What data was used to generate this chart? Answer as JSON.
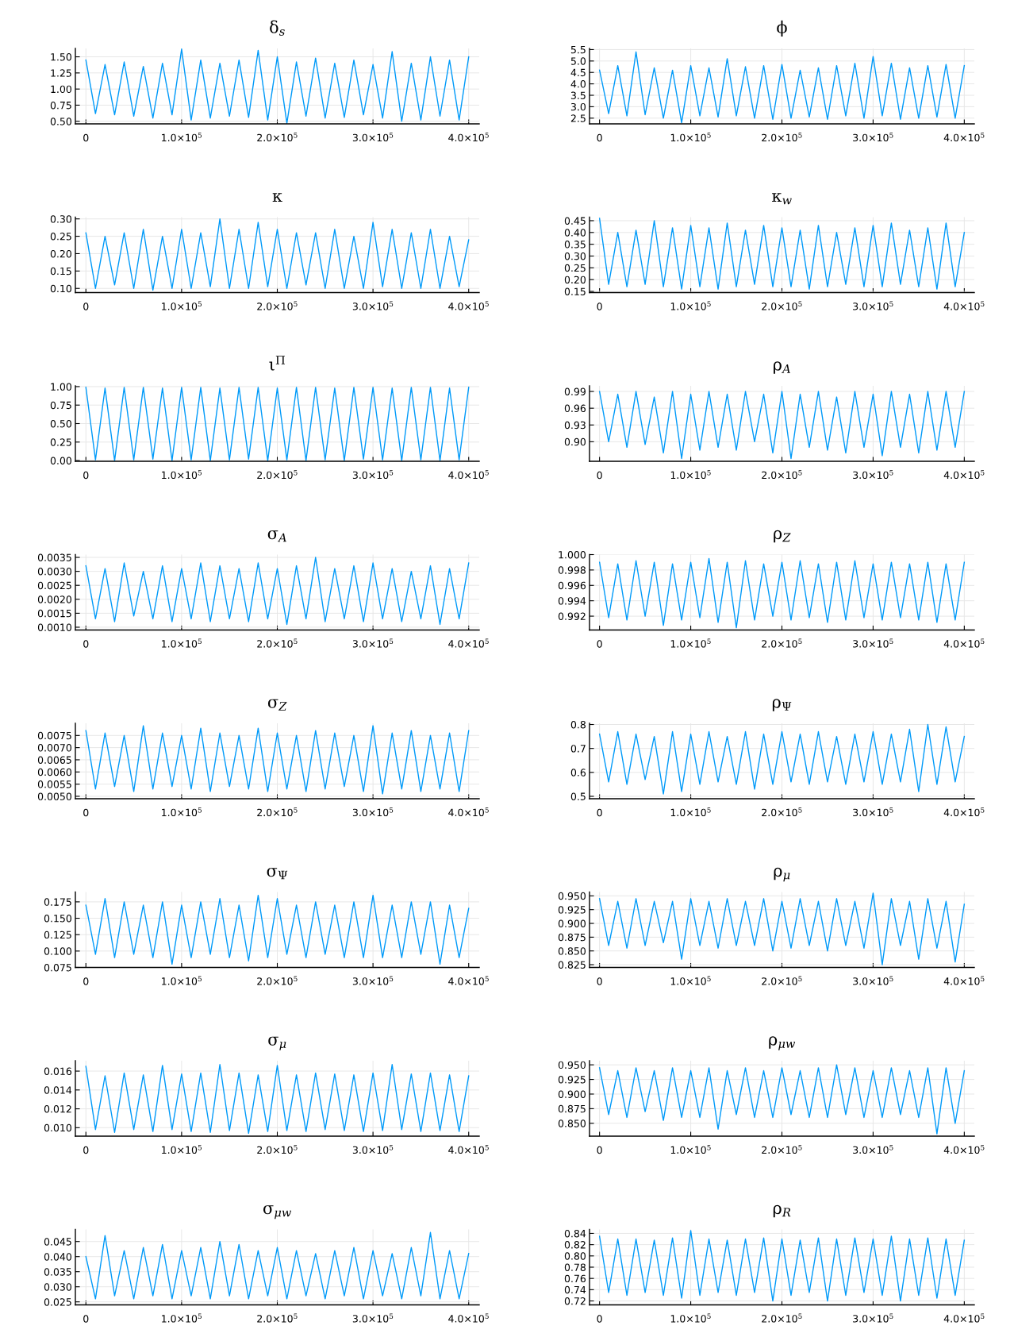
{
  "chart_data": [
    {
      "type": "line",
      "title": "δ$_{s}$",
      "color": "#009af9",
      "grid": true,
      "xlim": [
        -11000,
        411000
      ],
      "xticks": [
        0,
        {
          "value": 100000,
          "label": "1.0×10$^{5}$"
        },
        {
          "value": 200000,
          "label": "2.0×10$^{5}$"
        },
        {
          "value": 300000,
          "label": "3.0×10$^{5}$"
        },
        {
          "value": 400000,
          "label": "4.0×10$^{5}$"
        }
      ],
      "ylim": [
        0.46,
        1.63
      ],
      "yticks": [
        {
          "value": 0.5,
          "label": "0.50"
        },
        0.75,
        {
          "value": 1.0,
          "label": "1.00"
        },
        1.25,
        {
          "value": 1.5,
          "label": "1.50"
        }
      ],
      "x": [
        0,
        10000,
        20000,
        30000,
        40000,
        50000,
        60000,
        70000,
        80000,
        90000,
        100000,
        110000,
        120000,
        130000,
        140000,
        150000,
        160000,
        170000,
        180000,
        190000,
        200000,
        210000,
        220000,
        230000,
        240000,
        250000,
        260000,
        270000,
        280000,
        290000,
        300000,
        310000,
        320000,
        330000,
        340000,
        350000,
        360000,
        370000,
        380000,
        390000,
        400000
      ],
      "values": [
        1.45,
        0.62,
        1.38,
        0.6,
        1.42,
        0.58,
        1.35,
        0.55,
        1.4,
        0.6,
        1.62,
        0.52,
        1.45,
        0.55,
        1.4,
        0.58,
        1.45,
        0.56,
        1.6,
        0.52,
        1.5,
        0.47,
        1.42,
        0.58,
        1.48,
        0.55,
        1.4,
        0.56,
        1.45,
        0.6,
        1.38,
        0.55,
        1.58,
        0.5,
        1.4,
        0.52,
        1.5,
        0.58,
        1.45,
        0.52,
        1.5
      ]
    },
    {
      "type": "line",
      "title": "ϕ",
      "color": "#009af9",
      "grid": true,
      "xlim": [
        -11000,
        411000
      ],
      "xticks": [
        0,
        {
          "value": 100000,
          "label": "1.0×10$^{5}$"
        },
        {
          "value": 200000,
          "label": "2.0×10$^{5}$"
        },
        {
          "value": 300000,
          "label": "3.0×10$^{5}$"
        },
        {
          "value": 400000,
          "label": "4.0×10$^{5}$"
        }
      ],
      "ylim": [
        2.25,
        5.55
      ],
      "yticks": [
        2.5,
        {
          "value": 3.0,
          "label": "3.0"
        },
        3.5,
        {
          "value": 4.0,
          "label": "4.0"
        },
        4.5,
        {
          "value": 5.0,
          "label": "5.0"
        },
        5.5
      ],
      "x": [
        0,
        10000,
        20000,
        30000,
        40000,
        50000,
        60000,
        70000,
        80000,
        90000,
        100000,
        110000,
        120000,
        130000,
        140000,
        150000,
        160000,
        170000,
        180000,
        190000,
        200000,
        210000,
        220000,
        230000,
        240000,
        250000,
        260000,
        270000,
        280000,
        290000,
        300000,
        310000,
        320000,
        330000,
        340000,
        350000,
        360000,
        370000,
        380000,
        390000,
        400000
      ],
      "values": [
        4.6,
        2.7,
        4.8,
        2.6,
        5.4,
        2.65,
        4.7,
        2.5,
        4.6,
        2.3,
        4.8,
        2.6,
        4.7,
        2.55,
        5.1,
        2.6,
        4.75,
        2.5,
        4.8,
        2.45,
        4.85,
        2.5,
        4.6,
        2.55,
        4.7,
        2.45,
        4.8,
        2.6,
        4.9,
        2.5,
        5.2,
        2.6,
        4.9,
        2.45,
        4.7,
        2.5,
        4.8,
        2.55,
        4.85,
        2.5,
        4.8
      ]
    },
    {
      "type": "line",
      "title": "κ",
      "color": "#009af9",
      "grid": true,
      "xlim": [
        -11000,
        411000
      ],
      "xticks": [
        0,
        {
          "value": 100000,
          "label": "1.0×10$^{5}$"
        },
        {
          "value": 200000,
          "label": "2.0×10$^{5}$"
        },
        {
          "value": 300000,
          "label": "3.0×10$^{5}$"
        },
        {
          "value": 400000,
          "label": "4.0×10$^{5}$"
        }
      ],
      "ylim": [
        0.088,
        0.305
      ],
      "yticks": [
        {
          "value": 0.1,
          "label": "0.10"
        },
        0.15,
        {
          "value": 0.2,
          "label": "0.20"
        },
        0.25,
        {
          "value": 0.3,
          "label": "0.30"
        }
      ],
      "x": [
        0,
        10000,
        20000,
        30000,
        40000,
        50000,
        60000,
        70000,
        80000,
        90000,
        100000,
        110000,
        120000,
        130000,
        140000,
        150000,
        160000,
        170000,
        180000,
        190000,
        200000,
        210000,
        220000,
        230000,
        240000,
        250000,
        260000,
        270000,
        280000,
        290000,
        300000,
        310000,
        320000,
        330000,
        340000,
        350000,
        360000,
        370000,
        380000,
        390000,
        400000
      ],
      "values": [
        0.26,
        0.1,
        0.25,
        0.11,
        0.26,
        0.1,
        0.27,
        0.095,
        0.25,
        0.1,
        0.27,
        0.1,
        0.26,
        0.105,
        0.3,
        0.1,
        0.27,
        0.1,
        0.29,
        0.105,
        0.27,
        0.1,
        0.26,
        0.11,
        0.26,
        0.1,
        0.27,
        0.1,
        0.25,
        0.1,
        0.29,
        0.105,
        0.27,
        0.1,
        0.26,
        0.1,
        0.27,
        0.1,
        0.25,
        0.105,
        0.24
      ]
    },
    {
      "type": "line",
      "title": "κ$_{w}$",
      "color": "#009af9",
      "grid": true,
      "xlim": [
        -11000,
        411000
      ],
      "xticks": [
        0,
        {
          "value": 100000,
          "label": "1.0×10$^{5}$"
        },
        {
          "value": 200000,
          "label": "2.0×10$^{5}$"
        },
        {
          "value": 300000,
          "label": "3.0×10$^{5}$"
        },
        {
          "value": 400000,
          "label": "4.0×10$^{5}$"
        }
      ],
      "ylim": [
        0.145,
        0.465
      ],
      "yticks": [
        0.15,
        {
          "value": 0.2,
          "label": "0.20"
        },
        0.25,
        {
          "value": 0.3,
          "label": "0.30"
        },
        0.35,
        {
          "value": 0.4,
          "label": "0.40"
        },
        0.45
      ],
      "x": [
        0,
        10000,
        20000,
        30000,
        40000,
        50000,
        60000,
        70000,
        80000,
        90000,
        100000,
        110000,
        120000,
        130000,
        140000,
        150000,
        160000,
        170000,
        180000,
        190000,
        200000,
        210000,
        220000,
        230000,
        240000,
        250000,
        260000,
        270000,
        280000,
        290000,
        300000,
        310000,
        320000,
        330000,
        340000,
        350000,
        360000,
        370000,
        380000,
        390000,
        400000
      ],
      "values": [
        0.46,
        0.18,
        0.4,
        0.17,
        0.41,
        0.18,
        0.45,
        0.17,
        0.42,
        0.16,
        0.43,
        0.17,
        0.42,
        0.16,
        0.44,
        0.17,
        0.41,
        0.18,
        0.43,
        0.17,
        0.42,
        0.17,
        0.41,
        0.16,
        0.43,
        0.17,
        0.4,
        0.18,
        0.42,
        0.17,
        0.43,
        0.17,
        0.44,
        0.18,
        0.41,
        0.17,
        0.42,
        0.16,
        0.44,
        0.17,
        0.4
      ]
    },
    {
      "type": "line",
      "title": "ι$^{Π}$",
      "color": "#009af9",
      "grid": true,
      "xlim": [
        -11000,
        411000
      ],
      "xticks": [
        0,
        {
          "value": 100000,
          "label": "1.0×10$^{5}$"
        },
        {
          "value": 200000,
          "label": "2.0×10$^{5}$"
        },
        {
          "value": 300000,
          "label": "3.0×10$^{5}$"
        },
        {
          "value": 400000,
          "label": "4.0×10$^{5}$"
        }
      ],
      "ylim": [
        -0.01,
        1.01
      ],
      "yticks": [
        {
          "value": 0,
          "label": "0.00"
        },
        0.25,
        {
          "value": 0.5,
          "label": "0.50"
        },
        0.75,
        {
          "value": 1.0,
          "label": "1.00"
        }
      ],
      "x": [
        0,
        10000,
        20000,
        30000,
        40000,
        50000,
        60000,
        70000,
        80000,
        90000,
        100000,
        110000,
        120000,
        130000,
        140000,
        150000,
        160000,
        170000,
        180000,
        190000,
        200000,
        210000,
        220000,
        230000,
        240000,
        250000,
        260000,
        270000,
        280000,
        290000,
        300000,
        310000,
        320000,
        330000,
        340000,
        350000,
        360000,
        370000,
        380000,
        390000,
        400000
      ],
      "values": [
        0.99,
        0.01,
        0.98,
        0.0,
        0.99,
        0.01,
        0.99,
        0.02,
        0.98,
        0.0,
        0.99,
        0.01,
        0.99,
        0.0,
        0.98,
        0.01,
        0.99,
        0.02,
        0.99,
        0.0,
        0.98,
        0.01,
        0.99,
        0.0,
        0.99,
        0.01,
        0.98,
        0.0,
        0.99,
        0.02,
        0.99,
        0.01,
        0.98,
        0.0,
        0.99,
        0.01,
        0.99,
        0.0,
        0.98,
        0.01,
        0.99
      ]
    },
    {
      "type": "line",
      "title": "ρ$_{A}$",
      "color": "#009af9",
      "grid": true,
      "xlim": [
        -11000,
        411000
      ],
      "xticks": [
        0,
        {
          "value": 100000,
          "label": "1.0×10$^{5}$"
        },
        {
          "value": 200000,
          "label": "2.0×10$^{5}$"
        },
        {
          "value": 300000,
          "label": "3.0×10$^{5}$"
        },
        {
          "value": 400000,
          "label": "4.0×10$^{5}$"
        }
      ],
      "ylim": [
        0.865,
        1.0
      ],
      "yticks": [
        {
          "value": 0.9,
          "label": "0.90"
        },
        0.93,
        0.96,
        0.99
      ],
      "x": [
        0,
        10000,
        20000,
        30000,
        40000,
        50000,
        60000,
        70000,
        80000,
        90000,
        100000,
        110000,
        120000,
        130000,
        140000,
        150000,
        160000,
        170000,
        180000,
        190000,
        200000,
        210000,
        220000,
        230000,
        240000,
        250000,
        260000,
        270000,
        280000,
        290000,
        300000,
        310000,
        320000,
        330000,
        340000,
        350000,
        360000,
        370000,
        380000,
        390000,
        400000
      ],
      "values": [
        0.99,
        0.9,
        0.985,
        0.89,
        0.99,
        0.895,
        0.98,
        0.88,
        0.99,
        0.87,
        0.985,
        0.885,
        0.99,
        0.89,
        0.985,
        0.885,
        0.99,
        0.9,
        0.985,
        0.88,
        0.99,
        0.87,
        0.985,
        0.89,
        0.99,
        0.885,
        0.98,
        0.88,
        0.99,
        0.89,
        0.985,
        0.875,
        0.99,
        0.89,
        0.985,
        0.88,
        0.99,
        0.885,
        0.99,
        0.89,
        0.99
      ]
    },
    {
      "type": "line",
      "title": "σ$_{A}$",
      "color": "#009af9",
      "grid": true,
      "xlim": [
        -11000,
        411000
      ],
      "xticks": [
        0,
        {
          "value": 100000,
          "label": "1.0×10$^{5}$"
        },
        {
          "value": 200000,
          "label": "2.0×10$^{5}$"
        },
        {
          "value": 300000,
          "label": "3.0×10$^{5}$"
        },
        {
          "value": 400000,
          "label": "4.0×10$^{5}$"
        }
      ],
      "ylim": [
        0.0009,
        0.0036
      ],
      "yticks": [
        {
          "value": 0.001,
          "label": "0.0010"
        },
        0.0015,
        {
          "value": 0.002,
          "label": "0.0020"
        },
        0.0025,
        {
          "value": 0.003,
          "label": "0.0030"
        },
        0.0035
      ],
      "x": [
        0,
        10000,
        20000,
        30000,
        40000,
        50000,
        60000,
        70000,
        80000,
        90000,
        100000,
        110000,
        120000,
        130000,
        140000,
        150000,
        160000,
        170000,
        180000,
        190000,
        200000,
        210000,
        220000,
        230000,
        240000,
        250000,
        260000,
        270000,
        280000,
        290000,
        300000,
        310000,
        320000,
        330000,
        340000,
        350000,
        360000,
        370000,
        380000,
        390000,
        400000
      ],
      "values": [
        0.0032,
        0.0013,
        0.0031,
        0.0012,
        0.0033,
        0.0014,
        0.003,
        0.0013,
        0.0032,
        0.0012,
        0.0031,
        0.0013,
        0.0033,
        0.0012,
        0.0032,
        0.0013,
        0.0031,
        0.0012,
        0.0033,
        0.0013,
        0.0031,
        0.0011,
        0.0032,
        0.0013,
        0.0035,
        0.0012,
        0.0031,
        0.0013,
        0.0032,
        0.0012,
        0.0033,
        0.0013,
        0.0031,
        0.0012,
        0.003,
        0.0013,
        0.0032,
        0.0011,
        0.0031,
        0.0013,
        0.0033
      ]
    },
    {
      "type": "line",
      "title": "ρ$_{Z}$",
      "color": "#009af9",
      "grid": true,
      "xlim": [
        -11000,
        411000
      ],
      "xticks": [
        0,
        {
          "value": 100000,
          "label": "1.0×10$^{5}$"
        },
        {
          "value": 200000,
          "label": "2.0×10$^{5}$"
        },
        {
          "value": 300000,
          "label": "3.0×10$^{5}$"
        },
        {
          "value": 400000,
          "label": "4.0×10$^{5}$"
        }
      ],
      "ylim": [
        0.9902,
        1.0
      ],
      "yticks": [
        0.992,
        0.994,
        0.996,
        0.998,
        {
          "value": 1.0,
          "label": "1.000"
        }
      ],
      "x": [
        0,
        10000,
        20000,
        30000,
        40000,
        50000,
        60000,
        70000,
        80000,
        90000,
        100000,
        110000,
        120000,
        130000,
        140000,
        150000,
        160000,
        170000,
        180000,
        190000,
        200000,
        210000,
        220000,
        230000,
        240000,
        250000,
        260000,
        270000,
        280000,
        290000,
        300000,
        310000,
        320000,
        330000,
        340000,
        350000,
        360000,
        370000,
        380000,
        390000,
        400000
      ],
      "values": [
        0.999,
        0.9918,
        0.9988,
        0.9915,
        0.9992,
        0.992,
        0.999,
        0.9908,
        0.9988,
        0.9915,
        0.999,
        0.9918,
        0.9995,
        0.9912,
        0.999,
        0.9905,
        0.9992,
        0.9915,
        0.9988,
        0.992,
        0.999,
        0.9915,
        0.9992,
        0.9918,
        0.9988,
        0.9912,
        0.999,
        0.9915,
        0.9992,
        0.9918,
        0.9988,
        0.9915,
        0.999,
        0.9918,
        0.9988,
        0.9915,
        0.999,
        0.9912,
        0.9988,
        0.9915,
        0.999
      ]
    },
    {
      "type": "line",
      "title": "σ$_{Z}$",
      "color": "#009af9",
      "grid": true,
      "xlim": [
        -11000,
        411000
      ],
      "xticks": [
        0,
        {
          "value": 100000,
          "label": "1.0×10$^{5}$"
        },
        {
          "value": 200000,
          "label": "2.0×10$^{5}$"
        },
        {
          "value": 300000,
          "label": "3.0×10$^{5}$"
        },
        {
          "value": 400000,
          "label": "4.0×10$^{5}$"
        }
      ],
      "ylim": [
        0.0049,
        0.008
      ],
      "yticks": [
        {
          "value": 0.005,
          "label": "0.0050"
        },
        0.0055,
        {
          "value": 0.006,
          "label": "0.0060"
        },
        0.0065,
        {
          "value": 0.007,
          "label": "0.0070"
        },
        0.0075
      ],
      "x": [
        0,
        10000,
        20000,
        30000,
        40000,
        50000,
        60000,
        70000,
        80000,
        90000,
        100000,
        110000,
        120000,
        130000,
        140000,
        150000,
        160000,
        170000,
        180000,
        190000,
        200000,
        210000,
        220000,
        230000,
        240000,
        250000,
        260000,
        270000,
        280000,
        290000,
        300000,
        310000,
        320000,
        330000,
        340000,
        350000,
        360000,
        370000,
        380000,
        390000,
        400000
      ],
      "values": [
        0.0077,
        0.0053,
        0.0076,
        0.0054,
        0.0075,
        0.0052,
        0.0079,
        0.0053,
        0.0076,
        0.0054,
        0.0075,
        0.0053,
        0.0078,
        0.0052,
        0.0076,
        0.0054,
        0.0075,
        0.0053,
        0.0078,
        0.0052,
        0.0076,
        0.0053,
        0.0075,
        0.0052,
        0.0077,
        0.0053,
        0.0076,
        0.0054,
        0.0075,
        0.0052,
        0.0079,
        0.0051,
        0.0076,
        0.0053,
        0.0077,
        0.0052,
        0.0075,
        0.0053,
        0.0076,
        0.0052,
        0.0077
      ]
    },
    {
      "type": "line",
      "title": "ρ$_{Ψ}$",
      "color": "#009af9",
      "grid": true,
      "xlim": [
        -11000,
        411000
      ],
      "xticks": [
        0,
        {
          "value": 100000,
          "label": "1.0×10$^{5}$"
        },
        {
          "value": 200000,
          "label": "2.0×10$^{5}$"
        },
        {
          "value": 300000,
          "label": "3.0×10$^{5}$"
        },
        {
          "value": 400000,
          "label": "4.0×10$^{5}$"
        }
      ],
      "ylim": [
        0.49,
        0.805
      ],
      "yticks": [
        0.5,
        0.6,
        0.7,
        0.8
      ],
      "x": [
        0,
        10000,
        20000,
        30000,
        40000,
        50000,
        60000,
        70000,
        80000,
        90000,
        100000,
        110000,
        120000,
        130000,
        140000,
        150000,
        160000,
        170000,
        180000,
        190000,
        200000,
        210000,
        220000,
        230000,
        240000,
        250000,
        260000,
        270000,
        280000,
        290000,
        300000,
        310000,
        320000,
        330000,
        340000,
        350000,
        360000,
        370000,
        380000,
        390000,
        400000
      ],
      "values": [
        0.76,
        0.56,
        0.77,
        0.55,
        0.76,
        0.57,
        0.75,
        0.51,
        0.77,
        0.52,
        0.76,
        0.55,
        0.77,
        0.56,
        0.75,
        0.55,
        0.77,
        0.53,
        0.76,
        0.55,
        0.77,
        0.56,
        0.76,
        0.55,
        0.77,
        0.56,
        0.75,
        0.55,
        0.76,
        0.56,
        0.77,
        0.55,
        0.76,
        0.56,
        0.78,
        0.52,
        0.8,
        0.55,
        0.79,
        0.56,
        0.75
      ]
    },
    {
      "type": "line",
      "title": "σ$_{Ψ}$",
      "color": "#009af9",
      "grid": true,
      "xlim": [
        -11000,
        411000
      ],
      "xticks": [
        0,
        {
          "value": 100000,
          "label": "1.0×10$^{5}$"
        },
        {
          "value": 200000,
          "label": "2.0×10$^{5}$"
        },
        {
          "value": 300000,
          "label": "3.0×10$^{5}$"
        },
        {
          "value": 400000,
          "label": "4.0×10$^{5}$"
        }
      ],
      "ylim": [
        0.075,
        0.19
      ],
      "yticks": [
        0.075,
        {
          "value": 0.1,
          "label": "0.100"
        },
        0.125,
        {
          "value": 0.15,
          "label": "0.150"
        },
        0.175
      ],
      "x": [
        0,
        10000,
        20000,
        30000,
        40000,
        50000,
        60000,
        70000,
        80000,
        90000,
        100000,
        110000,
        120000,
        130000,
        140000,
        150000,
        160000,
        170000,
        180000,
        190000,
        200000,
        210000,
        220000,
        230000,
        240000,
        250000,
        260000,
        270000,
        280000,
        290000,
        300000,
        310000,
        320000,
        330000,
        340000,
        350000,
        360000,
        370000,
        380000,
        390000,
        400000
      ],
      "values": [
        0.17,
        0.095,
        0.18,
        0.09,
        0.175,
        0.095,
        0.17,
        0.09,
        0.175,
        0.08,
        0.17,
        0.09,
        0.175,
        0.095,
        0.18,
        0.09,
        0.17,
        0.085,
        0.185,
        0.09,
        0.18,
        0.095,
        0.17,
        0.09,
        0.175,
        0.095,
        0.17,
        0.09,
        0.175,
        0.09,
        0.185,
        0.09,
        0.17,
        0.09,
        0.175,
        0.095,
        0.175,
        0.08,
        0.17,
        0.09,
        0.165
      ]
    },
    {
      "type": "line",
      "title": "ρ$_{μ}$",
      "color": "#009af9",
      "grid": true,
      "xlim": [
        -11000,
        411000
      ],
      "xticks": [
        0,
        {
          "value": 100000,
          "label": "1.0×10$^{5}$"
        },
        {
          "value": 200000,
          "label": "2.0×10$^{5}$"
        },
        {
          "value": 300000,
          "label": "3.0×10$^{5}$"
        },
        {
          "value": 400000,
          "label": "4.0×10$^{5}$"
        }
      ],
      "ylim": [
        0.82,
        0.957
      ],
      "yticks": [
        0.825,
        {
          "value": 0.85,
          "label": "0.850"
        },
        0.875,
        {
          "value": 0.9,
          "label": "0.900"
        },
        0.925,
        {
          "value": 0.95,
          "label": "0.950"
        }
      ],
      "x": [
        0,
        10000,
        20000,
        30000,
        40000,
        50000,
        60000,
        70000,
        80000,
        90000,
        100000,
        110000,
        120000,
        130000,
        140000,
        150000,
        160000,
        170000,
        180000,
        190000,
        200000,
        210000,
        220000,
        230000,
        240000,
        250000,
        260000,
        270000,
        280000,
        290000,
        300000,
        310000,
        320000,
        330000,
        340000,
        350000,
        360000,
        370000,
        380000,
        390000,
        400000
      ],
      "values": [
        0.945,
        0.86,
        0.94,
        0.855,
        0.945,
        0.86,
        0.94,
        0.865,
        0.94,
        0.835,
        0.945,
        0.86,
        0.94,
        0.855,
        0.945,
        0.86,
        0.94,
        0.86,
        0.945,
        0.85,
        0.94,
        0.855,
        0.945,
        0.86,
        0.94,
        0.85,
        0.945,
        0.86,
        0.94,
        0.855,
        0.955,
        0.825,
        0.945,
        0.86,
        0.94,
        0.835,
        0.945,
        0.855,
        0.94,
        0.83,
        0.935
      ]
    },
    {
      "type": "line",
      "title": "σ$_{μ}$",
      "color": "#009af9",
      "grid": true,
      "xlim": [
        -11000,
        411000
      ],
      "xticks": [
        0,
        {
          "value": 100000,
          "label": "1.0×10$^{5}$"
        },
        {
          "value": 200000,
          "label": "2.0×10$^{5}$"
        },
        {
          "value": 300000,
          "label": "3.0×10$^{5}$"
        },
        {
          "value": 400000,
          "label": "4.0×10$^{5}$"
        }
      ],
      "ylim": [
        0.0091,
        0.0171
      ],
      "yticks": [
        {
          "value": 0.01,
          "label": "0.010"
        },
        0.012,
        0.014,
        0.016
      ],
      "x": [
        0,
        10000,
        20000,
        30000,
        40000,
        50000,
        60000,
        70000,
        80000,
        90000,
        100000,
        110000,
        120000,
        130000,
        140000,
        150000,
        160000,
        170000,
        180000,
        190000,
        200000,
        210000,
        220000,
        230000,
        240000,
        250000,
        260000,
        270000,
        280000,
        290000,
        300000,
        310000,
        320000,
        330000,
        340000,
        350000,
        360000,
        370000,
        380000,
        390000,
        400000
      ],
      "values": [
        0.0165,
        0.0098,
        0.0155,
        0.0095,
        0.0158,
        0.0098,
        0.0156,
        0.0096,
        0.0166,
        0.0098,
        0.0157,
        0.0096,
        0.0158,
        0.0095,
        0.0167,
        0.0097,
        0.0158,
        0.0094,
        0.0156,
        0.0096,
        0.0166,
        0.0097,
        0.0156,
        0.0096,
        0.0158,
        0.0098,
        0.0157,
        0.0097,
        0.0156,
        0.0096,
        0.0158,
        0.0097,
        0.0167,
        0.0098,
        0.0157,
        0.0096,
        0.0158,
        0.0097,
        0.0156,
        0.0096,
        0.0155
      ]
    },
    {
      "type": "line",
      "title": "ρ$_{μw}$",
      "color": "#009af9",
      "grid": true,
      "xlim": [
        -11000,
        411000
      ],
      "xticks": [
        0,
        {
          "value": 100000,
          "label": "1.0×10$^{5}$"
        },
        {
          "value": 200000,
          "label": "2.0×10$^{5}$"
        },
        {
          "value": 300000,
          "label": "3.0×10$^{5}$"
        },
        {
          "value": 400000,
          "label": "4.0×10$^{5}$"
        }
      ],
      "ylim": [
        0.828,
        0.957
      ],
      "yticks": [
        {
          "value": 0.85,
          "label": "0.850"
        },
        0.875,
        {
          "value": 0.9,
          "label": "0.900"
        },
        0.925,
        {
          "value": 0.95,
          "label": "0.950"
        }
      ],
      "x": [
        0,
        10000,
        20000,
        30000,
        40000,
        50000,
        60000,
        70000,
        80000,
        90000,
        100000,
        110000,
        120000,
        130000,
        140000,
        150000,
        160000,
        170000,
        180000,
        190000,
        200000,
        210000,
        220000,
        230000,
        240000,
        250000,
        260000,
        270000,
        280000,
        290000,
        300000,
        310000,
        320000,
        330000,
        340000,
        350000,
        360000,
        370000,
        380000,
        390000,
        400000
      ],
      "values": [
        0.945,
        0.865,
        0.94,
        0.86,
        0.945,
        0.87,
        0.94,
        0.855,
        0.945,
        0.86,
        0.94,
        0.86,
        0.945,
        0.84,
        0.94,
        0.865,
        0.945,
        0.86,
        0.94,
        0.86,
        0.945,
        0.865,
        0.94,
        0.86,
        0.945,
        0.86,
        0.95,
        0.865,
        0.945,
        0.86,
        0.94,
        0.86,
        0.945,
        0.865,
        0.94,
        0.86,
        0.945,
        0.832,
        0.945,
        0.85,
        0.94
      ]
    },
    {
      "type": "line",
      "title": "σ$_{μw}$",
      "color": "#009af9",
      "grid": true,
      "xlim": [
        -11000,
        411000
      ],
      "xticks": [
        0,
        {
          "value": 100000,
          "label": "1.0×10$^{5}$"
        },
        {
          "value": 200000,
          "label": "2.0×10$^{5}$"
        },
        {
          "value": 300000,
          "label": "3.0×10$^{5}$"
        },
        {
          "value": 400000,
          "label": "4.0×10$^{5}$"
        }
      ],
      "ylim": [
        0.024,
        0.049
      ],
      "yticks": [
        0.025,
        {
          "value": 0.03,
          "label": "0.030"
        },
        0.035,
        {
          "value": 0.04,
          "label": "0.040"
        },
        0.045
      ],
      "x": [
        0,
        10000,
        20000,
        30000,
        40000,
        50000,
        60000,
        70000,
        80000,
        90000,
        100000,
        110000,
        120000,
        130000,
        140000,
        150000,
        160000,
        170000,
        180000,
        190000,
        200000,
        210000,
        220000,
        230000,
        240000,
        250000,
        260000,
        270000,
        280000,
        290000,
        300000,
        310000,
        320000,
        330000,
        340000,
        350000,
        360000,
        370000,
        380000,
        390000,
        400000
      ],
      "values": [
        0.04,
        0.026,
        0.047,
        0.027,
        0.042,
        0.026,
        0.043,
        0.027,
        0.044,
        0.026,
        0.042,
        0.027,
        0.043,
        0.026,
        0.045,
        0.027,
        0.044,
        0.026,
        0.042,
        0.027,
        0.043,
        0.026,
        0.042,
        0.027,
        0.041,
        0.026,
        0.042,
        0.027,
        0.043,
        0.026,
        0.042,
        0.027,
        0.041,
        0.026,
        0.043,
        0.027,
        0.048,
        0.026,
        0.042,
        0.026,
        0.041
      ]
    },
    {
      "type": "line",
      "title": "ρ$_{R}$",
      "color": "#009af9",
      "grid": true,
      "xlim": [
        -11000,
        411000
      ],
      "xticks": [
        0,
        {
          "value": 100000,
          "label": "1.0×10$^{5}$"
        },
        {
          "value": 200000,
          "label": "2.0×10$^{5}$"
        },
        {
          "value": 300000,
          "label": "3.0×10$^{5}$"
        },
        {
          "value": 400000,
          "label": "4.0×10$^{5}$"
        }
      ],
      "ylim": [
        0.713,
        0.847
      ],
      "yticks": [
        0.72,
        0.74,
        0.76,
        0.78,
        {
          "value": 0.8,
          "label": "0.80"
        },
        0.82,
        0.84
      ],
      "x": [
        0,
        10000,
        20000,
        30000,
        40000,
        50000,
        60000,
        70000,
        80000,
        90000,
        100000,
        110000,
        120000,
        130000,
        140000,
        150000,
        160000,
        170000,
        180000,
        190000,
        200000,
        210000,
        220000,
        230000,
        240000,
        250000,
        260000,
        270000,
        280000,
        290000,
        300000,
        310000,
        320000,
        330000,
        340000,
        350000,
        360000,
        370000,
        380000,
        390000,
        400000
      ],
      "values": [
        0.835,
        0.735,
        0.83,
        0.73,
        0.83,
        0.735,
        0.828,
        0.73,
        0.832,
        0.725,
        0.845,
        0.73,
        0.83,
        0.735,
        0.828,
        0.73,
        0.83,
        0.735,
        0.832,
        0.72,
        0.83,
        0.73,
        0.828,
        0.735,
        0.832,
        0.72,
        0.83,
        0.73,
        0.832,
        0.735,
        0.83,
        0.73,
        0.835,
        0.72,
        0.83,
        0.73,
        0.832,
        0.725,
        0.83,
        0.73,
        0.828
      ]
    }
  ]
}
